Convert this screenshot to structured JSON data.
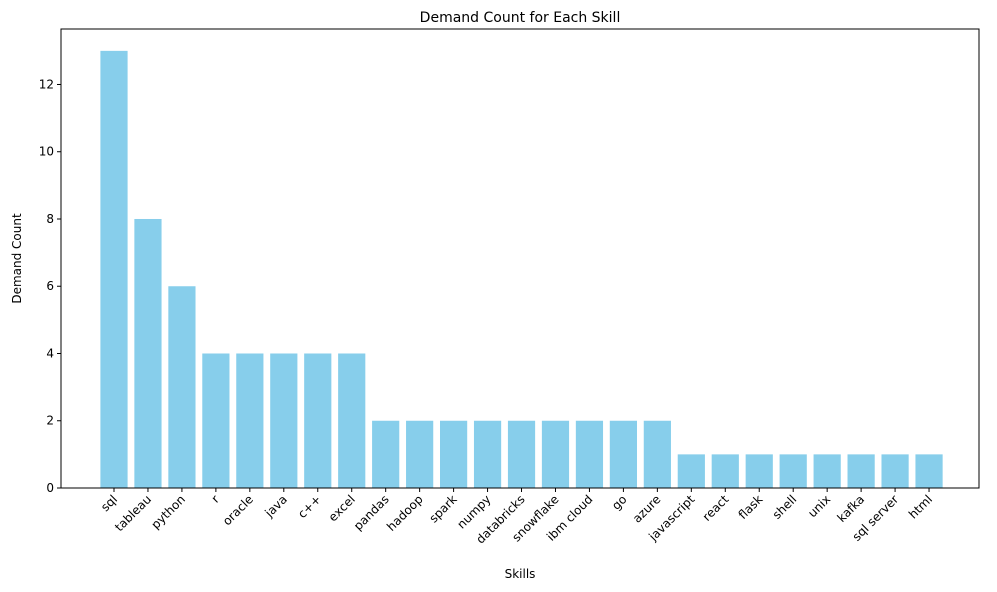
{
  "chart_data": {
    "type": "bar",
    "title": "Demand Count for Each Skill",
    "xlabel": "Skills",
    "ylabel": "Demand Count",
    "categories": [
      "sql",
      "tableau",
      "python",
      "r",
      "oracle",
      "java",
      "c++",
      "excel",
      "pandas",
      "hadoop",
      "spark",
      "numpy",
      "databricks",
      "snowflake",
      "ibm cloud",
      "go",
      "azure",
      "javascript",
      "react",
      "flask",
      "shell",
      "unix",
      "kafka",
      "sql server",
      "html"
    ],
    "values": [
      13,
      8,
      6,
      4,
      4,
      4,
      4,
      4,
      2,
      2,
      2,
      2,
      2,
      2,
      2,
      2,
      2,
      1,
      1,
      1,
      1,
      1,
      1,
      1,
      1
    ],
    "ylim": [
      0,
      13.65
    ],
    "yticks": [
      0,
      2,
      4,
      6,
      8,
      10,
      12
    ],
    "grid": false,
    "bar_color": "#87CEEB",
    "xtick_rotation": "45 degrees"
  }
}
